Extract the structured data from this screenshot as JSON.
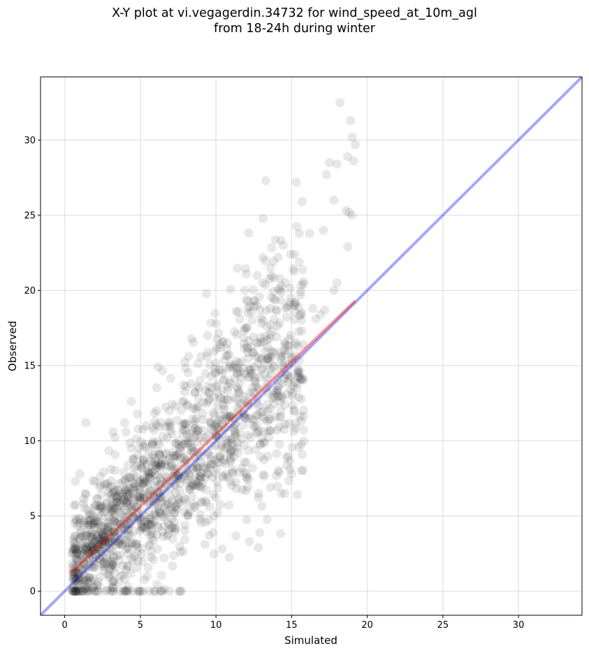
{
  "chart_data": {
    "type": "scatter",
    "title_line1": "X-Y plot at vi.vegagerdin.34732 for wind_speed_at_10m_agl",
    "title_line2": "from 18-24h during winter",
    "xlabel": "Simulated",
    "ylabel": "Observed",
    "xlim": [
      -1.6,
      34.2
    ],
    "ylim": [
      -1.6,
      34.2
    ],
    "xticks": [
      0,
      5,
      10,
      15,
      20,
      25,
      30
    ],
    "yticks": [
      0,
      5,
      10,
      15,
      20,
      25,
      30
    ],
    "grid": true,
    "reference_line": {
      "x": [
        -1.6,
        34.2
      ],
      "y": [
        -1.6,
        34.2
      ],
      "color": "#0000ee"
    },
    "fit_line": {
      "x": [
        0.4,
        19.2
      ],
      "y": [
        1.2,
        19.3
      ],
      "color": "#ee0000"
    },
    "marker_color": "#000000",
    "outliers": {
      "x": [
        18.2,
        18.9,
        19.0,
        19.2,
        19.1,
        18.7,
        18.0,
        17.5,
        17.3,
        13.3,
        15.3,
        17.8,
        18.6,
        18.8,
        19.0,
        16.2,
        17.1,
        18.7,
        15.2,
        15.5,
        14.1,
        13.1,
        13.6,
        14.6,
        14.9,
        12.0,
        11.9,
        12.1,
        18.0,
        17.8,
        16.9,
        17.2,
        16.4,
        16.6,
        15.2,
        14.8,
        15.6,
        15.4,
        15.4,
        15.2,
        15.7,
        1.4,
        0.7,
        1.0,
        12.9,
        14.3,
        13.6,
        14.9,
        12.8,
        12.2
      ],
      "y": [
        32.5,
        31.3,
        30.2,
        29.7,
        28.6,
        28.9,
        28.4,
        28.5,
        27.7,
        27.3,
        27.2,
        26.0,
        25.3,
        25.2,
        25.0,
        23.8,
        24.0,
        22.9,
        22.4,
        21.9,
        22.2,
        22.2,
        21.5,
        20.5,
        19.2,
        21.1,
        20.0,
        19.3,
        20.5,
        20.0,
        18.4,
        18.7,
        18.8,
        18.1,
        19.2,
        19.0,
        19.7,
        16.3,
        14.5,
        13.9,
        9.1,
        11.2,
        7.3,
        7.8,
        3.9,
        6.5,
        6.9,
        8.1,
        2.9,
        3.3
      ]
    }
  }
}
